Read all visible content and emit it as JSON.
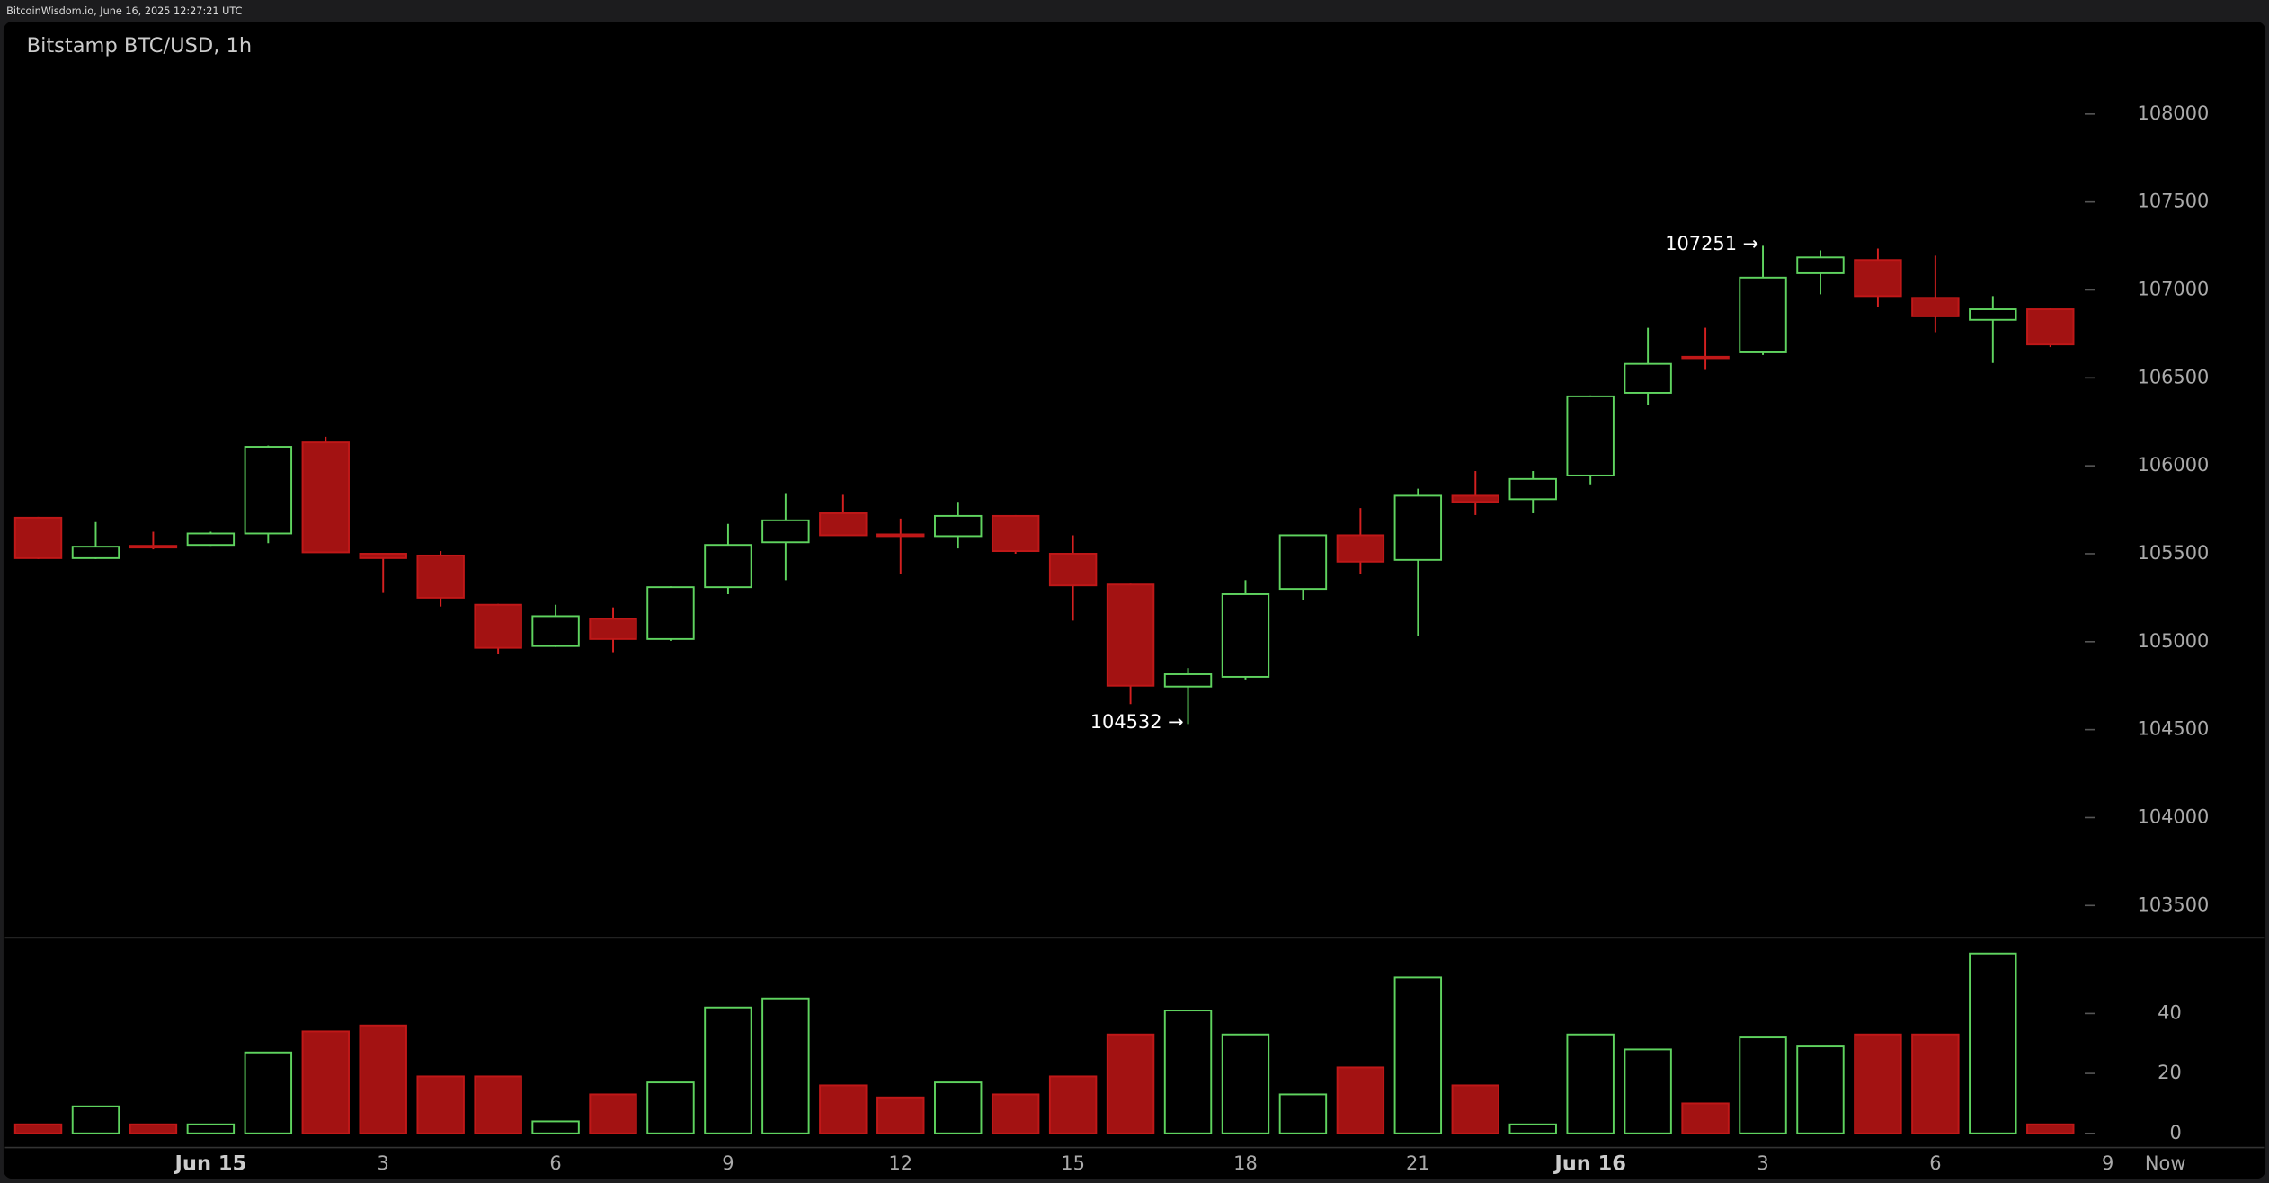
{
  "chart_data": {
    "type": "candlestick",
    "caption": "BitcoinWisdom.io, June 16, 2025 12:27:21 UTC",
    "title": "Bitstamp BTC/USD, 1h",
    "categories": [
      null,
      null,
      null,
      "Jun 15",
      null,
      null,
      "3",
      null,
      null,
      "6",
      null,
      null,
      "9",
      null,
      null,
      "12",
      null,
      null,
      "15",
      null,
      null,
      "18",
      null,
      null,
      "21",
      null,
      null,
      "Jun 16",
      null,
      null,
      "3",
      null,
      null,
      "6",
      null,
      null,
      "9",
      "Now"
    ],
    "open": [
      105705,
      105475,
      105545,
      105550,
      105615,
      106133,
      105500,
      105490,
      105210,
      104975,
      105130,
      105015,
      105310,
      105565,
      105730,
      105610,
      105600,
      105715,
      105500,
      105325,
      104745,
      104800,
      105300,
      105605,
      105465,
      105830,
      105810,
      105945,
      106415,
      106620,
      106645,
      107095,
      107170,
      106955,
      106830,
      106890,
      null,
      null
    ],
    "high": [
      105710,
      105680,
      105625,
      105625,
      106115,
      106165,
      105500,
      105515,
      105215,
      105210,
      105195,
      105315,
      105670,
      105845,
      105835,
      105700,
      105795,
      105720,
      105605,
      105330,
      104850,
      105350,
      105610,
      105760,
      105870,
      105970,
      105970,
      106400,
      106785,
      106785,
      107251,
      107225,
      107235,
      107195,
      106965,
      106895,
      null,
      null
    ],
    "low": [
      105470,
      105470,
      105525,
      105545,
      105560,
      105505,
      105277,
      105200,
      104930,
      104970,
      104940,
      105005,
      105270,
      105350,
      105605,
      105385,
      105530,
      105500,
      105120,
      104645,
      104532,
      104785,
      105235,
      105385,
      105030,
      105720,
      105730,
      105895,
      106345,
      106545,
      106630,
      106975,
      106905,
      106760,
      106585,
      106675,
      null,
      null
    ],
    "close": [
      105475,
      105540,
      105535,
      105615,
      106108,
      105508,
      105475,
      105250,
      104965,
      105145,
      105015,
      105310,
      105550,
      105690,
      105605,
      105600,
      105715,
      105515,
      105320,
      104750,
      104815,
      105270,
      105605,
      105455,
      105830,
      105795,
      105925,
      106395,
      106580,
      106615,
      107070,
      107185,
      106965,
      106850,
      106890,
      106690,
      null,
      null
    ],
    "ylim": [
      103320,
      108525
    ],
    "yticks": [
      103500,
      104000,
      104500,
      105000,
      105500,
      106000,
      106500,
      107000,
      107500,
      108000
    ],
    "annotations": [
      "107251 →",
      "104532 →"
    ],
    "up_color": "#5fd35f",
    "down_color": "#a31212",
    "volume": {
      "values": [
        3,
        9,
        3,
        3,
        27,
        34,
        36,
        19,
        19,
        4,
        13,
        17,
        42,
        45,
        16,
        12,
        17,
        13,
        19,
        33,
        41,
        33,
        13,
        22,
        52,
        16,
        3,
        33,
        28,
        10,
        32,
        29,
        33,
        33,
        60,
        3,
        null,
        null
      ],
      "ylim": [
        -4.5,
        64.5
      ],
      "yticks": [
        0,
        20,
        40
      ]
    }
  }
}
